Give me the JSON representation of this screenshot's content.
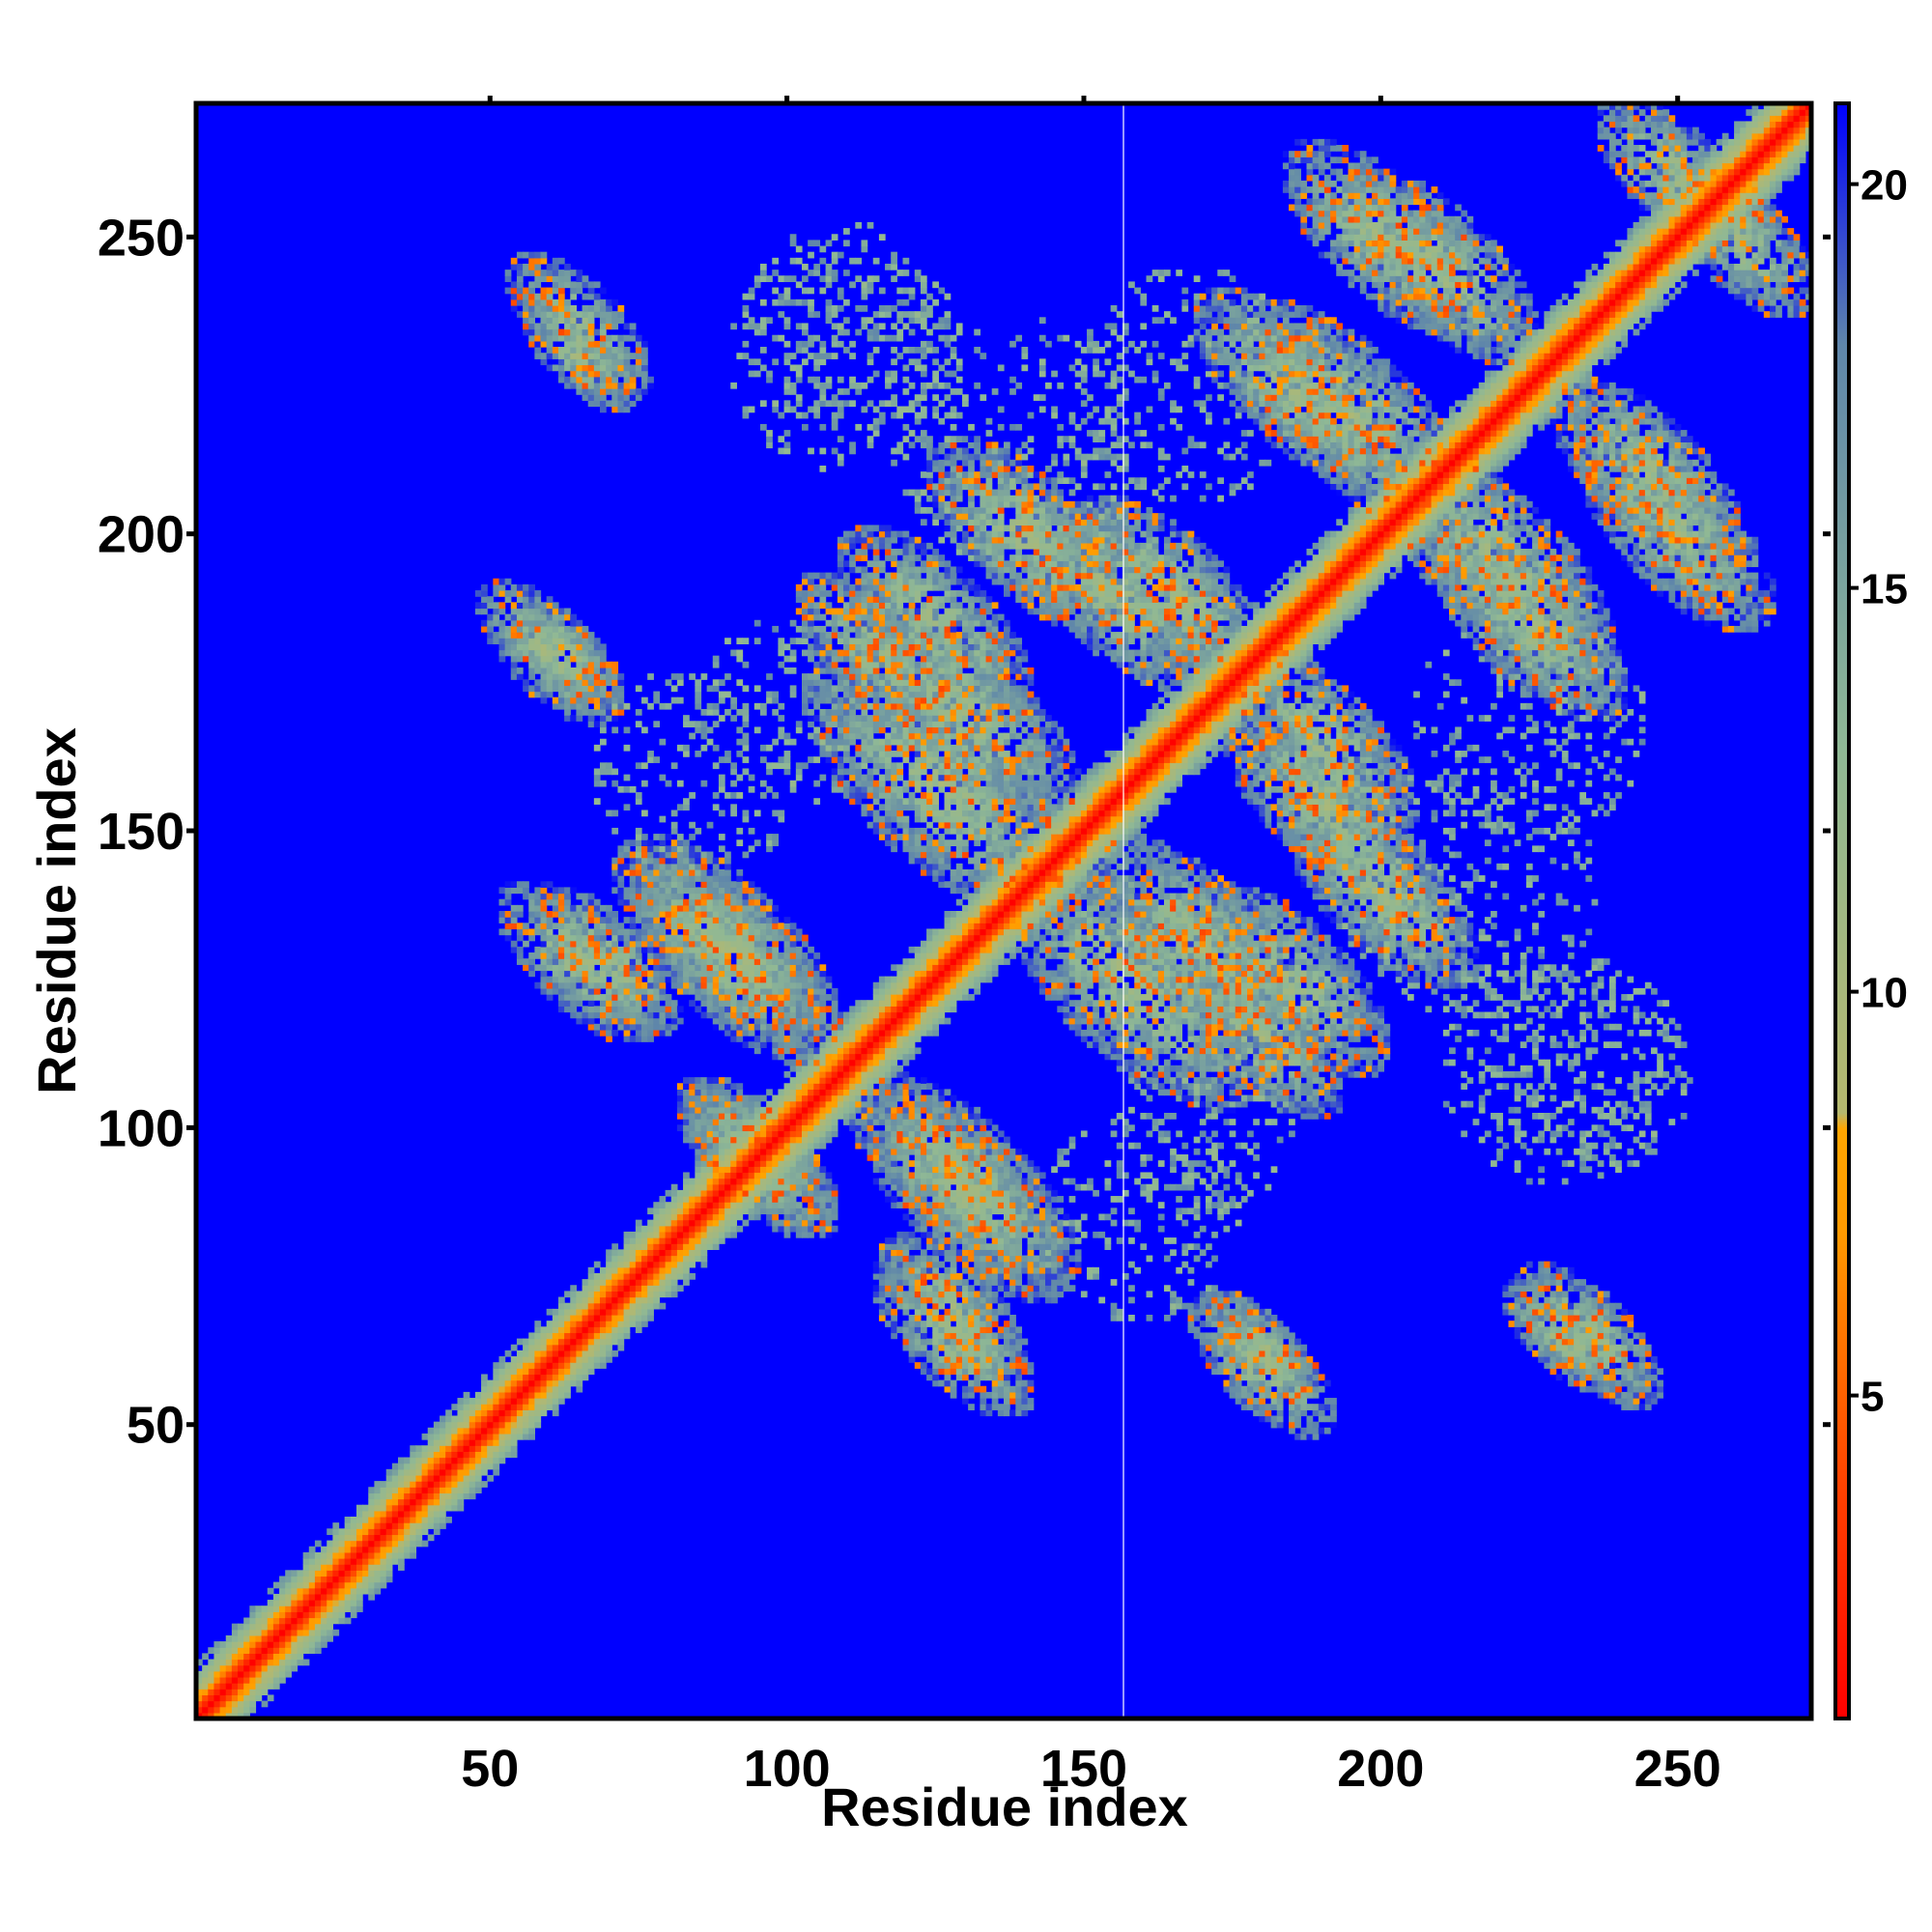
{
  "chart_data": {
    "type": "heatmap",
    "title": "",
    "xlabel": "Residue index",
    "ylabel": "Residue index",
    "xlim": [
      1,
      272
    ],
    "ylim": [
      1,
      272
    ],
    "n_residues": 272,
    "x_ticks": [
      50,
      100,
      150,
      200,
      250
    ],
    "y_ticks": [
      50,
      100,
      150,
      200,
      250
    ],
    "colorbar": {
      "range": [
        1,
        21
      ],
      "ticks": [
        5,
        10,
        15,
        20
      ],
      "stops": [
        {
          "value": 1,
          "color": "#ff0000"
        },
        {
          "value": 4,
          "color": "#ff4500"
        },
        {
          "value": 7,
          "color": "#ff9900"
        },
        {
          "value": 8.3,
          "color": "#ffa500"
        },
        {
          "value": 8.5,
          "color": "#b5b86e"
        },
        {
          "value": 13,
          "color": "#8fb895"
        },
        {
          "value": 18,
          "color": "#5f86aa"
        },
        {
          "value": 21,
          "color": "#0000ff"
        }
      ]
    },
    "background_value": 21,
    "diagonal_band_half_width": 9,
    "contact_patches": [
      {
        "x": 65,
        "y": 230,
        "spread": 7,
        "orientation": "anti"
      },
      {
        "x": 63,
        "y": 180,
        "spread": 7,
        "orientation": "anti"
      },
      {
        "x": 70,
        "y": 128,
        "spread": 9,
        "orientation": "anti"
      },
      {
        "x": 90,
        "y": 130,
        "spread": 12,
        "orientation": "anti"
      },
      {
        "x": 125,
        "y": 158,
        "spread": 16,
        "orientation": "anti"
      },
      {
        "x": 130,
        "y": 90,
        "spread": 14,
        "orientation": "anti"
      },
      {
        "x": 128,
        "y": 65,
        "spread": 10,
        "orientation": "anti"
      },
      {
        "x": 115,
        "y": 180,
        "spread": 10,
        "orientation": "anti"
      },
      {
        "x": 140,
        "y": 200,
        "spread": 12,
        "orientation": "anti"
      },
      {
        "x": 165,
        "y": 190,
        "spread": 12,
        "orientation": "anti"
      },
      {
        "x": 170,
        "y": 130,
        "spread": 14,
        "orientation": "anti"
      },
      {
        "x": 190,
        "y": 155,
        "spread": 12,
        "orientation": "anti"
      },
      {
        "x": 185,
        "y": 125,
        "spread": 12,
        "orientation": "anti"
      },
      {
        "x": 180,
        "y": 60,
        "spread": 9,
        "orientation": "anti"
      },
      {
        "x": 235,
        "y": 65,
        "spread": 9,
        "orientation": "anti"
      },
      {
        "x": 200,
        "y": 250,
        "spread": 12,
        "orientation": "anti"
      },
      {
        "x": 185,
        "y": 225,
        "spread": 12,
        "orientation": "anti"
      },
      {
        "x": 220,
        "y": 195,
        "spread": 14,
        "orientation": "anti"
      },
      {
        "x": 245,
        "y": 210,
        "spread": 12,
        "orientation": "anti"
      },
      {
        "x": 250,
        "y": 260,
        "spread": 10,
        "orientation": "anti"
      },
      {
        "x": 95,
        "y": 95,
        "spread": 10,
        "orientation": "anti"
      }
    ],
    "faint_regions": [
      {
        "x": 110,
        "y": 235,
        "spread": 18
      },
      {
        "x": 168,
        "y": 225,
        "spread": 20
      },
      {
        "x": 215,
        "y": 140,
        "spread": 22
      },
      {
        "x": 230,
        "y": 110,
        "spread": 20
      },
      {
        "x": 160,
        "y": 85,
        "spread": 18
      },
      {
        "x": 100,
        "y": 170,
        "spread": 16
      }
    ]
  }
}
